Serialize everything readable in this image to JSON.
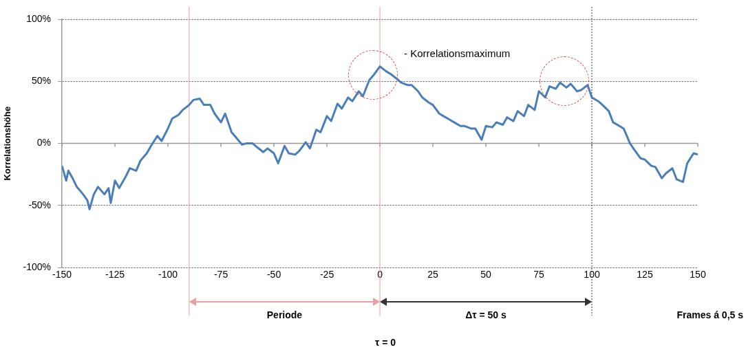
{
  "chart_data": {
    "type": "line",
    "ylabel": "Korrelationshöhe",
    "xlabel": "Frames á 0,5 s",
    "xlim": [
      -150,
      150
    ],
    "xticks": [
      -150,
      -125,
      -100,
      -75,
      -50,
      -25,
      0,
      25,
      50,
      75,
      100,
      125,
      150
    ],
    "ylim": [
      -100,
      100
    ],
    "yticks": [
      {
        "value": -100,
        "label": "-100%"
      },
      {
        "value": -50,
        "label": "-50%"
      },
      {
        "value": 0,
        "label": "0%"
      },
      {
        "value": 50,
        "label": "50%"
      },
      {
        "value": 100,
        "label": "100%"
      }
    ],
    "grid": "y",
    "marker": "none",
    "line_style": "solid",
    "series": [
      {
        "color": "#4a7ebb",
        "x": [
          -150,
          -148,
          -147,
          -145,
          -143,
          -140,
          -138,
          -137,
          -135,
          -133,
          -130,
          -128,
          -127,
          -125,
          -123,
          -120,
          -118,
          -115,
          -113,
          -110,
          -108,
          -105,
          -103,
          -100,
          -98,
          -95,
          -93,
          -90,
          -88,
          -85,
          -83,
          -80,
          -78,
          -75,
          -73,
          -70,
          -68,
          -65,
          -63,
          -60,
          -58,
          -55,
          -53,
          -50,
          -48,
          -45,
          -43,
          -40,
          -38,
          -35,
          -33,
          -30,
          -28,
          -25,
          -23,
          -20,
          -18,
          -15,
          -13,
          -10,
          -8,
          -5,
          -3,
          0,
          3,
          5,
          8,
          10,
          13,
          15,
          18,
          20,
          23,
          25,
          28,
          30,
          33,
          35,
          38,
          40,
          43,
          45,
          48,
          50,
          53,
          55,
          58,
          60,
          63,
          65,
          68,
          70,
          73,
          75,
          78,
          80,
          83,
          85,
          88,
          90,
          93,
          95,
          98,
          100,
          103,
          105,
          108,
          110,
          113,
          115,
          118,
          120,
          123,
          125,
          128,
          130,
          133,
          135,
          138,
          140,
          143,
          145,
          148,
          150
        ],
        "values": [
          -18,
          -30,
          -22,
          -28,
          -35,
          -41,
          -46,
          -53,
          -41,
          -35,
          -41,
          -36,
          -48,
          -30,
          -36,
          -27,
          -20,
          -22,
          -14,
          -8,
          -2,
          6,
          2,
          12,
          20,
          23,
          27,
          31,
          35,
          36,
          31,
          31,
          24,
          17,
          24,
          9,
          5,
          -1,
          0,
          0,
          -3,
          -7,
          -4,
          -8,
          -16,
          -2,
          -8,
          -9,
          -6,
          1,
          -4,
          11,
          9,
          22,
          18,
          32,
          28,
          37,
          34,
          42,
          38,
          51,
          55,
          62,
          58,
          56,
          52,
          49,
          47,
          47,
          42,
          37,
          33,
          31,
          24,
          22,
          19,
          17,
          14,
          14,
          12,
          12,
          3,
          14,
          13,
          17,
          15,
          21,
          18,
          26,
          22,
          31,
          27,
          42,
          37,
          46,
          44,
          49,
          45,
          48,
          42,
          43,
          47,
          37,
          34,
          31,
          26,
          17,
          14,
          12,
          0,
          -5,
          -12,
          -13,
          -18,
          -19,
          -28,
          -24,
          -20,
          -29,
          -31,
          -16,
          -8,
          -9
        ]
      }
    ],
    "ref_lines": [
      {
        "axis": "x",
        "value": -90,
        "color": "#e8a0a0",
        "line_style": "solid"
      },
      {
        "axis": "x",
        "value": 0,
        "color": "#e8a0a0",
        "line_style": "solid"
      },
      {
        "axis": "x",
        "value": 100,
        "color": "#333333",
        "line_style": "dotted"
      }
    ],
    "annotations": [
      {
        "text": "- Korrelationsmaximum",
        "x": 0,
        "y": 62
      },
      "Periode",
      "Δτ = 50 s",
      "τ = 0"
    ]
  }
}
